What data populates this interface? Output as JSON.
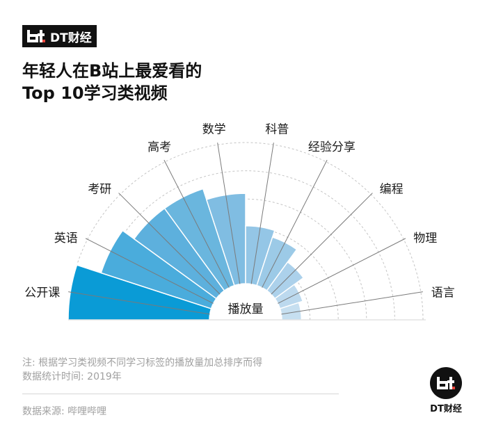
{
  "brand": {
    "name": "DT财经"
  },
  "title": {
    "line1": "年轻人在B站上最爱看的",
    "line2": "Top 10学习类视频"
  },
  "chart_data": {
    "type": "polar-bar",
    "title": "年轻人在B站上最爱看的Top 10学习类视频",
    "center_label": "播放量",
    "categories": [
      "公开课",
      "英语",
      "考研",
      "高考",
      "数学",
      "科普",
      "经验分享",
      "编程",
      "物理",
      "语言"
    ],
    "values": [
      100,
      82,
      72,
      72,
      64,
      41,
      36,
      25,
      17,
      14
    ],
    "scale_max": 100,
    "colors": [
      "#0a9bd6",
      "#4aacdc",
      "#5db0dd",
      "#6ab6de",
      "#80bde2",
      "#94c6e6",
      "#9ccae7",
      "#acd1eb",
      "#bcd9ee",
      "#c6dff0"
    ],
    "grid": "dashed-arcs"
  },
  "notes": {
    "line1": "注: 根据学习类视频不同学习标签的播放量加总排序而得",
    "line2": "数据统计时间: 2019年"
  },
  "source": "数据来源: 哔哩哔哩",
  "logo": {
    "text": "DT财经"
  }
}
